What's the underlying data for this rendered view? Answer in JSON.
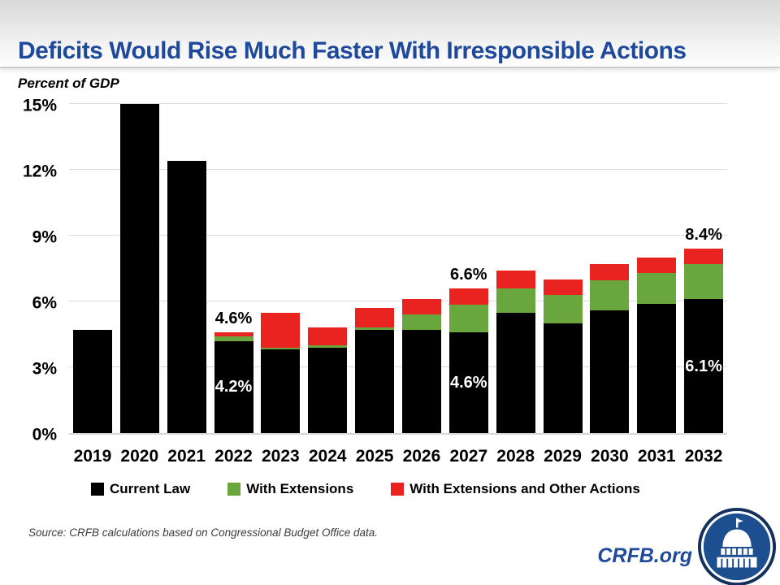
{
  "header": {
    "title": "Deficits Would Rise Much Faster With Irresponsible Actions",
    "subtitle": "Percent of GDP"
  },
  "colors": {
    "title_blue": "#1f4a9c",
    "current_law": "#000000",
    "with_extensions": "#6aa63e",
    "with_extensions_other": "#e92420",
    "gridline": "#dadada"
  },
  "chart_data": {
    "type": "bar",
    "stacked": true,
    "title": "Deficits Would Rise Much Faster With Irresponsible Actions",
    "ylabel": "Percent of GDP",
    "xlabel": "",
    "ylim": [
      0,
      15
    ],
    "grid": true,
    "legend_position": "bottom",
    "categories": [
      "2019",
      "2020",
      "2021",
      "2022",
      "2023",
      "2024",
      "2025",
      "2026",
      "2027",
      "2028",
      "2029",
      "2030",
      "2031",
      "2032"
    ],
    "y_ticks": [
      "15%",
      "12%",
      "9%",
      "6%",
      "3%",
      "0%"
    ],
    "series": [
      {
        "name": "Current Law",
        "color": "#000000",
        "values": [
          4.7,
          15.0,
          12.4,
          4.2,
          3.8,
          3.9,
          4.7,
          4.7,
          4.6,
          5.5,
          5.0,
          5.6,
          5.9,
          6.1
        ]
      },
      {
        "name": "With Extensions",
        "color": "#6aa63e",
        "values": [
          0,
          0,
          0,
          0.2,
          0.1,
          0.1,
          0.1,
          0.7,
          1.25,
          1.1,
          1.3,
          1.35,
          1.4,
          1.6
        ]
      },
      {
        "name": "With Extensions and Other Actions",
        "color": "#e92420",
        "values": [
          0,
          0,
          0,
          0.2,
          1.6,
          0.8,
          0.9,
          0.7,
          0.75,
          0.8,
          0.7,
          0.75,
          0.7,
          0.7
        ]
      }
    ],
    "annotations": [
      {
        "category": "2022",
        "above_label": "4.6%",
        "inside_label": "4.2%"
      },
      {
        "category": "2027",
        "above_label": "6.6%",
        "inside_label": "4.6%"
      },
      {
        "category": "2032",
        "above_label": "8.4%",
        "inside_label": "6.1%"
      }
    ]
  },
  "legend": {
    "items": [
      {
        "label": "Current Law",
        "color": "#000000"
      },
      {
        "label": "With Extensions",
        "color": "#6aa63e"
      },
      {
        "label": "With Extensions and Other Actions",
        "color": "#e92420"
      }
    ]
  },
  "footer": {
    "source": "Source: CRFB calculations based on Congressional Budget Office data.",
    "site": "CRFB.org",
    "logo": "crfb-capitol-logo"
  }
}
